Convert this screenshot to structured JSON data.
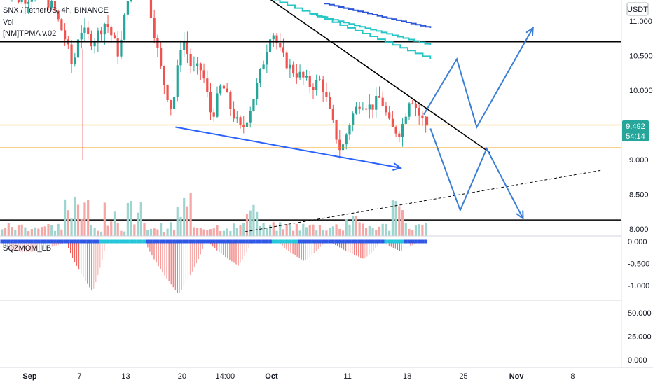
{
  "header": {
    "symbol_line": "SNX / TetherUS, 4h, BINANCE",
    "vol_label": "Vol",
    "tpma_label": "[NM]TPMA v.02",
    "sqzmom_label": "SQZMOM_LB",
    "currency": "USDT"
  },
  "price_tag": {
    "value": "9.492",
    "countdown": "54:14"
  },
  "colors": {
    "up": "#26a69a",
    "down": "#ef5350",
    "drawing_blue": "#2962ff",
    "arrow_blue": "#3a7fd5",
    "orange": "#f7a21b",
    "black": "#000000",
    "tpma_teal": "#26c6c6",
    "tpma_blue": "#2a55d8",
    "sqz_dot_blue": "#3058e6",
    "sqz_dot_cyan": "#26c6da",
    "tag_bg": "#26a69a"
  },
  "chart_data": [
    {
      "type": "candlestick",
      "pane": "price",
      "xlabel": "",
      "ylabel": "",
      "x_tick_labels": [
        "Sep",
        "7",
        "13",
        "20",
        "14:00",
        "Oct",
        "11",
        "18",
        "25",
        "Nov",
        "8"
      ],
      "y_tick_labels": [
        "11.000",
        "10.500",
        "10.000",
        "9.500",
        "9.000",
        "8.500",
        "8.000"
      ],
      "ylim": [
        8.0,
        11.0
      ],
      "horizontal_levels": [
        {
          "value": 10.7,
          "color": "black"
        },
        {
          "value": 9.5,
          "color": "orange"
        },
        {
          "value": 9.17,
          "color": "orange"
        },
        {
          "value": 8.13,
          "color": "black"
        }
      ],
      "last_price": 9.492,
      "close_path": [
        {
          "x": 0,
          "close": 11.6
        },
        {
          "x": 3,
          "close": 11.3
        },
        {
          "x": 6,
          "close": 11.4
        },
        {
          "x": 8,
          "close": 11.2
        },
        {
          "x": 10,
          "close": 10.7
        },
        {
          "x": 11,
          "close": 10.3
        },
        {
          "x": 12,
          "close": 10.9
        },
        {
          "x": 14,
          "close": 10.7
        },
        {
          "x": 16,
          "close": 11.0
        },
        {
          "x": 18,
          "close": 10.5
        },
        {
          "x": 19.5,
          "close": 11.5
        },
        {
          "x": 22,
          "close": 11.6
        },
        {
          "x": 23,
          "close": 11.0
        },
        {
          "x": 24.5,
          "close": 10.2
        },
        {
          "x": 26,
          "close": 9.7
        },
        {
          "x": 27.5,
          "close": 10.8
        },
        {
          "x": 29,
          "close": 10.3
        },
        {
          "x": 30.5,
          "close": 10.3
        },
        {
          "x": 32,
          "close": 9.6
        },
        {
          "x": 33.5,
          "close": 10.1
        },
        {
          "x": 35,
          "close": 9.7
        },
        {
          "x": 36.5,
          "close": 9.4
        },
        {
          "x": 38,
          "close": 9.8
        },
        {
          "x": 39.5,
          "close": 10.3
        },
        {
          "x": 41,
          "close": 10.9
        },
        {
          "x": 42.5,
          "close": 10.5
        },
        {
          "x": 44,
          "close": 10.3
        },
        {
          "x": 45.5,
          "close": 10.2
        },
        {
          "x": 47,
          "close": 10.05
        },
        {
          "x": 48.5,
          "close": 10.15
        },
        {
          "x": 50,
          "close": 9.6
        },
        {
          "x": 51.5,
          "close": 9.1
        },
        {
          "x": 53,
          "close": 9.6
        },
        {
          "x": 54.5,
          "close": 9.85
        },
        {
          "x": 56,
          "close": 9.75
        },
        {
          "x": 57.5,
          "close": 9.9
        },
        {
          "x": 59,
          "close": 9.45
        },
        {
          "x": 60.5,
          "close": 9.4
        },
        {
          "x": 62,
          "close": 9.95
        },
        {
          "x": 63.5,
          "close": 9.6
        },
        {
          "x": 64.5,
          "close": 9.49
        }
      ],
      "drawings": [
        {
          "kind": "trendline",
          "from": {
            "x": 38,
            "close": 11.5
          },
          "to": {
            "x": 74,
            "close": 9.1
          },
          "color": "black"
        },
        {
          "kind": "arrow",
          "from": {
            "x": 26.5,
            "close": 9.47
          },
          "to": {
            "x": 60.5,
            "close": 8.88
          },
          "color": "drawing_blue"
        },
        {
          "kind": "dashed_trend",
          "from": {
            "x": 37,
            "close": 7.96
          },
          "to": {
            "x": 91,
            "close": 8.85
          },
          "color": "black"
        },
        {
          "kind": "projection_up",
          "points": [
            {
              "x": 64,
              "close": 9.65
            },
            {
              "x": 69,
              "close": 10.45
            },
            {
              "x": 72,
              "close": 9.47
            },
            {
              "x": 80.5,
              "close": 10.9
            }
          ],
          "color": "arrow_blue"
        },
        {
          "kind": "projection_down",
          "points": [
            {
              "x": 65,
              "close": 9.45
            },
            {
              "x": 69.5,
              "close": 8.27
            },
            {
              "x": 73.5,
              "close": 9.16
            },
            {
              "x": 79,
              "close": 8.15
            }
          ],
          "color": "arrow_blue"
        }
      ],
      "tpma_lines": [
        {
          "color": "tpma_blue",
          "from": {
            "x": 49,
            "close": 11.25
          },
          "to": {
            "x": 65,
            "close": 10.9
          }
        },
        {
          "color": "tpma_teal",
          "from": {
            "x": 47,
            "close": 11.1
          },
          "to": {
            "x": 65,
            "close": 10.65
          }
        },
        {
          "color": "tpma_teal",
          "from": {
            "x": 40,
            "close": 11.35
          },
          "to": {
            "x": 65,
            "close": 10.45
          }
        }
      ]
    },
    {
      "type": "bar",
      "pane": "volume",
      "series": [
        {
          "values_profile": "mostly low with spikes near Sep 7, Sep 13, Sep 20 and Oct 1"
        }
      ]
    },
    {
      "type": "bar",
      "pane": "sqzmom",
      "y_tick_labels": [
        "0.000",
        "-0.500",
        "-1.000"
      ],
      "ylim": [
        -1.2,
        0.05
      ],
      "troughs": [
        {
          "x": 14,
          "value": -1.15
        },
        {
          "x": 27,
          "value": -1.2
        },
        {
          "x": 36,
          "value": -0.55
        },
        {
          "x": 46,
          "value": -0.45
        },
        {
          "x": 55,
          "value": -0.4
        },
        {
          "x": 60.5,
          "value": -0.22
        }
      ],
      "drawings": [
        {
          "kind": "arrow",
          "from": {
            "x": 34,
            "value": -0.7
          },
          "to": {
            "x": 66,
            "value": -0.3
          },
          "color": "drawing_blue"
        }
      ]
    },
    {
      "type": "line",
      "pane": "lower",
      "y_tick_labels": [
        "50.000",
        "25.000",
        "0.000"
      ],
      "ylim": [
        0,
        60
      ]
    }
  ]
}
